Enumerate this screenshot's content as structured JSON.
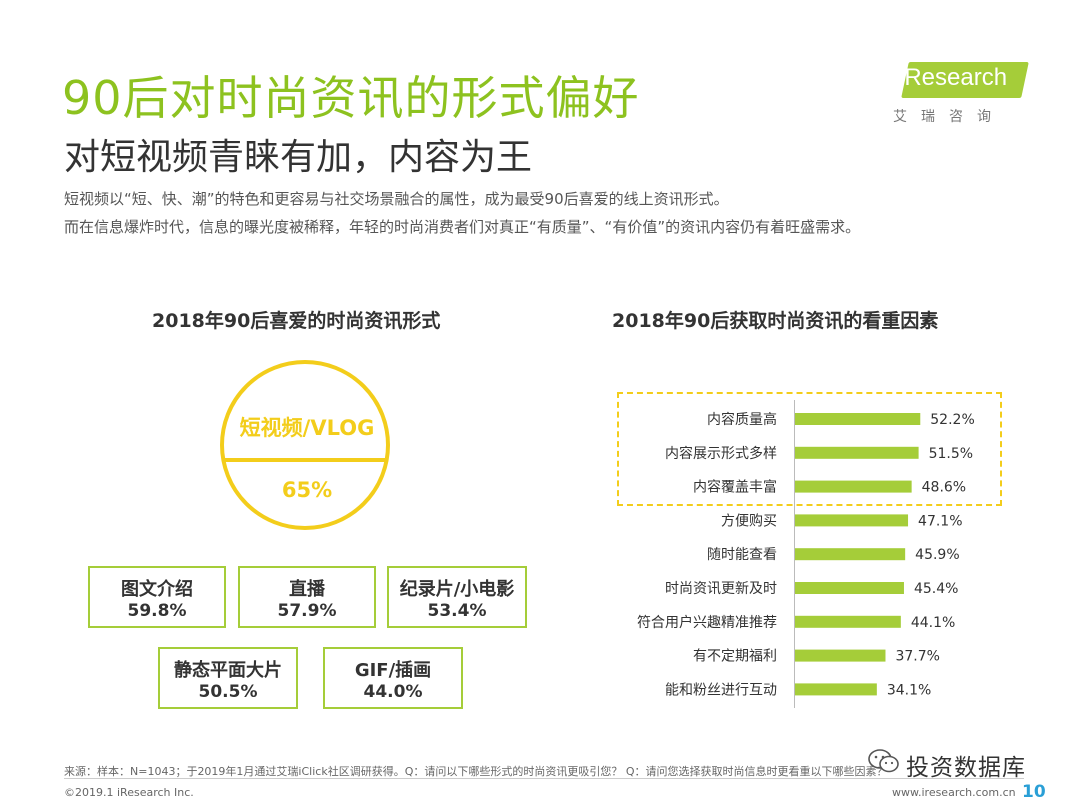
{
  "header": {
    "title": "90后对时尚资讯的形式偏好",
    "subtitle": "对短视频青睐有加，内容为王",
    "intro_line1": "短视频以“短、快、潮”的特色和更容易与社交场景融合的属性，成为最受90后喜爱的线上资讯形式。",
    "intro_line2": "而在信息爆炸时代，信息的曝光度被稀释，年轻的时尚消费者们对真正“有质量”、“有价值”的资讯内容仍有着旺盛需求。"
  },
  "logo": {
    "text": "iResearch",
    "cn": "艾瑞咨询"
  },
  "chart_data": [
    {
      "type": "table",
      "title": "2018年90后喜爱的时尚资讯形式",
      "top": {
        "label": "短视频/VLOG",
        "value": "65%"
      },
      "items": [
        {
          "label": "图文介绍",
          "value": "59.8%"
        },
        {
          "label": "直播",
          "value": "57.9%"
        },
        {
          "label": "纪录片/小电影",
          "value": "53.4%"
        },
        {
          "label": "静态平面大片",
          "value": "50.5%"
        },
        {
          "label": "GIF/插画",
          "value": "44.0%"
        }
      ]
    },
    {
      "type": "bar",
      "orientation": "horizontal",
      "title": "2018年90后获取时尚资讯的看重因素",
      "categories": [
        "内容质量高",
        "内容展示形式多样",
        "内容覆盖丰富",
        "方便购买",
        "随时能查看",
        "时尚资讯更新及时",
        "符合用户兴趣精准推荐",
        "有不定期福利",
        "能和粉丝进行互动"
      ],
      "values": [
        52.2,
        51.5,
        48.6,
        47.1,
        45.9,
        45.4,
        44.1,
        37.7,
        34.1
      ],
      "value_labels": [
        "52.2%",
        "51.5%",
        "48.6%",
        "47.1%",
        "45.9%",
        "45.4%",
        "44.1%",
        "37.7%",
        "34.1%"
      ],
      "highlighted_count": 3,
      "bar_color": "#a5cd39",
      "highlight_color": "#f3cd1b"
    }
  ],
  "footer": {
    "source": "来源：样本：N=1043；于2019年1月通过艾瑞iClick社区调研获得。Q：请问以下哪些形式的时尚资讯更吸引您？ Q：请问您选择获取时尚信息时更看重以下哪些因素？",
    "copyright": "©2019.1 iResearch Inc.",
    "website": "www.iresearch.com.cn",
    "wechat": "投资数据库",
    "page": "10"
  },
  "colors": {
    "accent_green": "#8dc21f",
    "bar_green": "#a5cd39",
    "yellow": "#f3cd1b"
  }
}
